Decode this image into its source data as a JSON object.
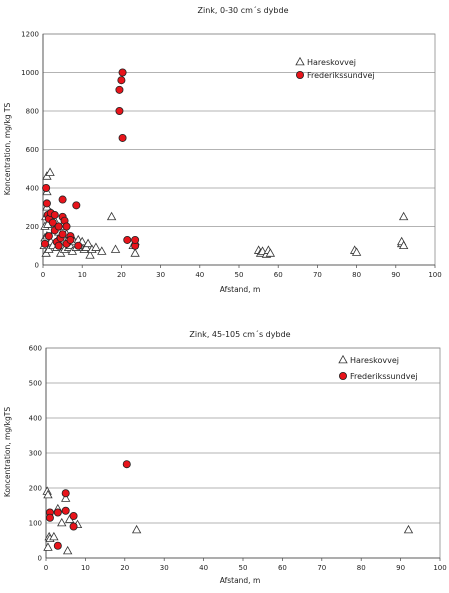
{
  "chart_data": [
    {
      "type": "scatter",
      "title": "Zink, 0-30 cm´s dybde",
      "xlabel": "Afstand, m",
      "ylabel": "Koncentration, mg/kg TS",
      "xlim": [
        0,
        100
      ],
      "ylim": [
        0,
        1200
      ],
      "xticks": [
        "0",
        "10",
        "20",
        "30",
        "40",
        "50",
        "60",
        "70",
        "80",
        "90",
        "100"
      ],
      "yticks": [
        "0",
        "200",
        "400",
        "600",
        "800",
        "1000",
        "1200"
      ],
      "grid": "horizontal",
      "legend_position": "top-right",
      "series": [
        {
          "name": "Hareskovvej",
          "marker": "triangle",
          "color": "#ffffff",
          "points": [
            [
              0.3,
              100
            ],
            [
              0.5,
              140
            ],
            [
              0.5,
              200
            ],
            [
              0.7,
              250
            ],
            [
              0.8,
              60
            ],
            [
              1,
              300
            ],
            [
              1,
              150
            ],
            [
              1,
              380
            ],
            [
              1,
              460
            ],
            [
              1.2,
              210
            ],
            [
              1.5,
              80
            ],
            [
              1.8,
              480
            ],
            [
              2,
              120
            ],
            [
              2,
              270
            ],
            [
              2.5,
              100
            ],
            [
              3,
              180
            ],
            [
              3,
              230
            ],
            [
              3.5,
              90
            ],
            [
              4,
              140
            ],
            [
              4,
              170
            ],
            [
              4.5,
              110
            ],
            [
              4.5,
              60
            ],
            [
              5,
              200
            ],
            [
              5,
              100
            ],
            [
              5.5,
              130
            ],
            [
              5.5,
              80
            ],
            [
              6,
              160
            ],
            [
              6,
              120
            ],
            [
              6.5,
              90
            ],
            [
              7,
              100
            ],
            [
              7.5,
              140
            ],
            [
              7.5,
              70
            ],
            [
              8,
              120
            ],
            [
              8.5,
              90
            ],
            [
              9,
              130
            ],
            [
              9.5,
              100
            ],
            [
              10,
              120
            ],
            [
              10.5,
              80
            ],
            [
              11,
              90
            ],
            [
              11.5,
              110
            ],
            [
              12,
              50
            ],
            [
              12.5,
              80
            ],
            [
              13.5,
              90
            ],
            [
              15,
              70
            ],
            [
              17.5,
              250
            ],
            [
              18.5,
              80
            ],
            [
              23,
              100
            ],
            [
              23.5,
              120
            ],
            [
              23.5,
              60
            ],
            [
              55,
              75
            ],
            [
              55.5,
              60
            ],
            [
              56,
              70
            ],
            [
              57,
              55
            ],
            [
              57.5,
              75
            ],
            [
              58,
              60
            ],
            [
              79.5,
              75
            ],
            [
              80,
              65
            ],
            [
              91.5,
              110
            ],
            [
              91.5,
              120
            ],
            [
              92,
              100
            ],
            [
              92,
              250
            ]
          ]
        },
        {
          "name": "Frederikssundvej",
          "marker": "circle",
          "color": "#e8141b",
          "points": [
            [
              0.5,
              110
            ],
            [
              0.8,
              400
            ],
            [
              1,
              320
            ],
            [
              1.2,
              260
            ],
            [
              1.5,
              240
            ],
            [
              1.5,
              150
            ],
            [
              2,
              270
            ],
            [
              2.5,
              220
            ],
            [
              3,
              260
            ],
            [
              3,
              180
            ],
            [
              3.5,
              120
            ],
            [
              4,
              200
            ],
            [
              4,
              100
            ],
            [
              4.5,
              140
            ],
            [
              5,
              250
            ],
            [
              5,
              160
            ],
            [
              5,
              340
            ],
            [
              5.5,
              230
            ],
            [
              6,
              200
            ],
            [
              6,
              110
            ],
            [
              7,
              150
            ],
            [
              7,
              130
            ],
            [
              8.5,
              310
            ],
            [
              9,
              100
            ],
            [
              19.5,
              910
            ],
            [
              19.5,
              800
            ],
            [
              20,
              960
            ],
            [
              20.3,
              1000
            ],
            [
              20.3,
              660
            ],
            [
              21.5,
              130
            ],
            [
              23.5,
              100
            ],
            [
              23.5,
              130
            ]
          ]
        }
      ]
    },
    {
      "type": "scatter",
      "title": "Zink, 45-105 cm´s dybde",
      "xlabel": "Afstand, m",
      "ylabel": "Koncentration, mg/kgTS",
      "xlim": [
        0,
        100
      ],
      "ylim": [
        0,
        600
      ],
      "xticks": [
        "0",
        "10",
        "20",
        "30",
        "40",
        "50",
        "60",
        "70",
        "80",
        "90",
        "100"
      ],
      "yticks": [
        "0",
        "100",
        "200",
        "300",
        "400",
        "500",
        "600"
      ],
      "grid": "horizontal",
      "legend_position": "top-right",
      "series": [
        {
          "name": "Hareskovvej",
          "marker": "triangle",
          "color": "#ffffff",
          "points": [
            [
              0.3,
              190
            ],
            [
              0.5,
              180
            ],
            [
              0.5,
              30
            ],
            [
              0.8,
              60
            ],
            [
              1,
              55
            ],
            [
              2,
              60
            ],
            [
              3,
              140
            ],
            [
              4,
              100
            ],
            [
              5,
              170
            ],
            [
              5.5,
              20
            ],
            [
              6,
              110
            ],
            [
              8,
              95
            ],
            [
              23,
              80
            ],
            [
              92,
              80
            ]
          ]
        },
        {
          "name": "Frederikssundvej",
          "marker": "circle",
          "color": "#e8141b",
          "points": [
            [
              1,
              130
            ],
            [
              1,
              115
            ],
            [
              3,
              130
            ],
            [
              3,
              35
            ],
            [
              5,
              185
            ],
            [
              5,
              135
            ],
            [
              7,
              120
            ],
            [
              7,
              90
            ],
            [
              20.5,
              268
            ]
          ]
        }
      ]
    }
  ]
}
